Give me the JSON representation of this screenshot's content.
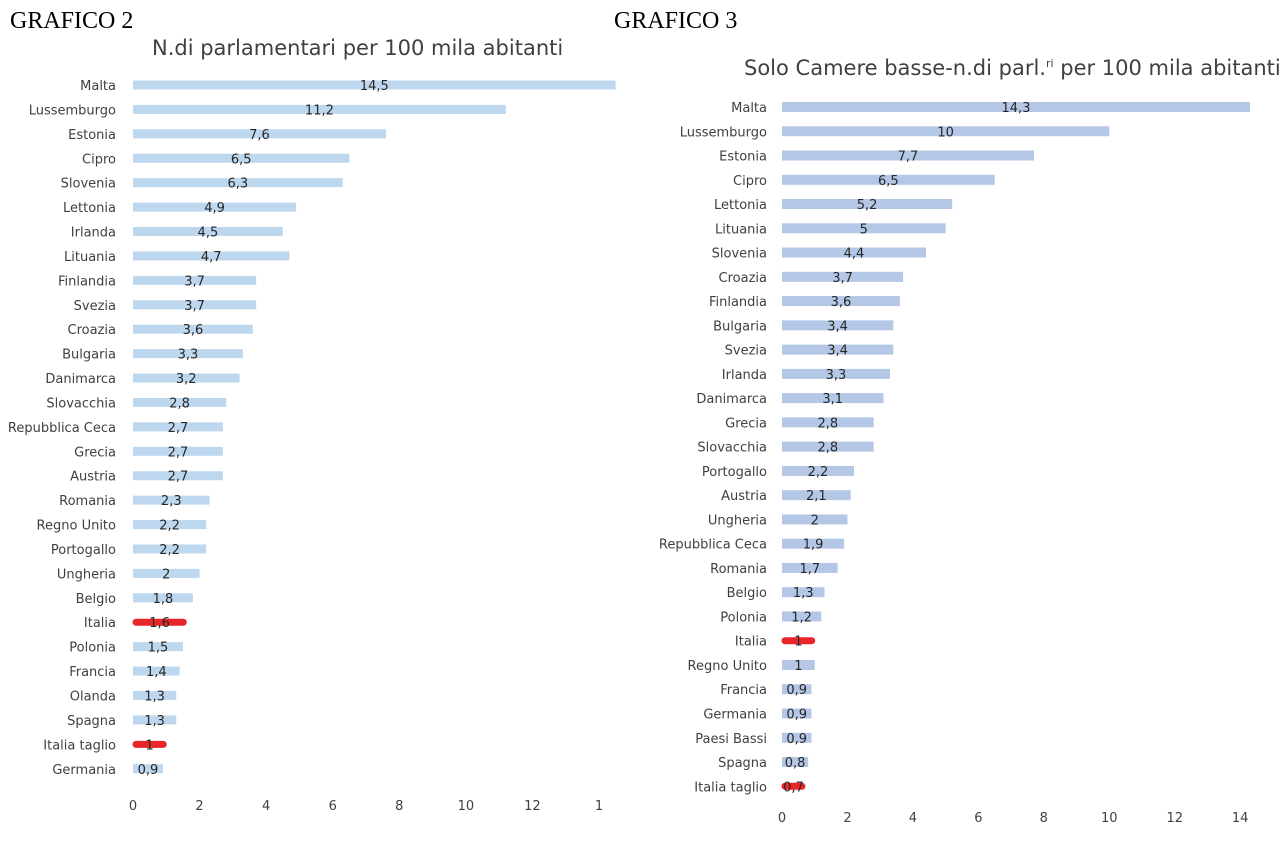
{
  "headings": {
    "left": "GRAFICO 2",
    "right": "GRAFICO 3"
  },
  "colors": {
    "bar_left": "#bdd7ee",
    "bar_right": "#b4c7e7",
    "highlight": "#e8262a"
  },
  "chart_data": [
    {
      "type": "bar",
      "orientation": "horizontal",
      "title": "N.di parlamentari per 100 mila abitanti",
      "xlim": [
        0,
        14
      ],
      "xticks": [
        "0",
        "2",
        "4",
        "6",
        "8",
        "10",
        "12",
        "1"
      ],
      "grid": false,
      "highlighted": [
        "Italia",
        "Italia taglio"
      ],
      "categories": [
        "Malta",
        "Lussemburgo",
        "Estonia",
        "Cipro",
        "Slovenia",
        "Lettonia",
        "Irlanda",
        "Lituania",
        "Finlandia",
        "Svezia",
        "Croazia",
        "Bulgaria",
        "Danimarca",
        "Slovacchia",
        "Repubblica Ceca",
        "Grecia",
        "Austria",
        "Romania",
        "Regno Unito",
        "Portogallo",
        "Ungheria",
        "Belgio",
        "Italia",
        "Polonia",
        "Francia",
        "Olanda",
        "Spagna",
        "Italia taglio",
        "Germania"
      ],
      "values": [
        14.5,
        11.2,
        7.6,
        6.5,
        6.3,
        4.9,
        4.5,
        4.7,
        3.7,
        3.7,
        3.6,
        3.3,
        3.2,
        2.8,
        2.7,
        2.7,
        2.7,
        2.3,
        2.2,
        2.2,
        2,
        1.8,
        1.6,
        1.5,
        1.4,
        1.3,
        1.3,
        1,
        0.9
      ],
      "labels": [
        "14,5",
        "11,2",
        "7,6",
        "6,5",
        "6,3",
        "4,9",
        "4,5",
        "4,7",
        "3,7",
        "3,7",
        "3,6",
        "3,3",
        "3,2",
        "2,8",
        "2,7",
        "2,7",
        "2,7",
        "2,3",
        "2,2",
        "2,2",
        "2",
        "1,8",
        "1,6",
        "1,5",
        "1,4",
        "1,3",
        "1,3",
        "1",
        "0,9"
      ]
    },
    {
      "type": "bar",
      "orientation": "horizontal",
      "title": "Solo Camere basse-n.di parl.",
      "title_sup": "ri",
      "title_end": " per 100 mila abitanti",
      "xlim": [
        0,
        14.3
      ],
      "xticks": [
        "0",
        "2",
        "4",
        "6",
        "8",
        "10",
        "12",
        "14"
      ],
      "grid": false,
      "highlighted": [
        "Italia",
        "Italia taglio"
      ],
      "categories": [
        "Malta",
        "Lussemburgo",
        "Estonia",
        "Cipro",
        "Lettonia",
        "Lituania",
        "Slovenia",
        "Croazia",
        "Finlandia",
        "Bulgaria",
        "Svezia",
        "Irlanda",
        "Danimarca",
        "Grecia",
        "Slovacchia",
        "Portogallo",
        "Austria",
        "Ungheria",
        "Repubblica Ceca",
        "Romania",
        "Belgio",
        "Polonia",
        "Italia",
        "Regno Unito",
        "Francia",
        "Germania",
        "Paesi Bassi",
        "Spagna",
        "Italia taglio"
      ],
      "values": [
        14.3,
        10,
        7.7,
        6.5,
        5.2,
        5,
        4.4,
        3.7,
        3.6,
        3.4,
        3.4,
        3.3,
        3.1,
        2.8,
        2.8,
        2.2,
        2.1,
        2,
        1.9,
        1.7,
        1.3,
        1.2,
        1,
        1,
        0.9,
        0.9,
        0.9,
        0.8,
        0.7
      ],
      "labels": [
        "14,3",
        "10",
        "7,7",
        "6,5",
        "5,2",
        "5",
        "4,4",
        "3,7",
        "3,6",
        "3,4",
        "3,4",
        "3,3",
        "3,1",
        "2,8",
        "2,8",
        "2,2",
        "2,1",
        "2",
        "1,9",
        "1,7",
        "1,3",
        "1,2",
        "1",
        "1",
        "0,9",
        "0,9",
        "0,9",
        "0,8",
        "0,7"
      ]
    }
  ]
}
